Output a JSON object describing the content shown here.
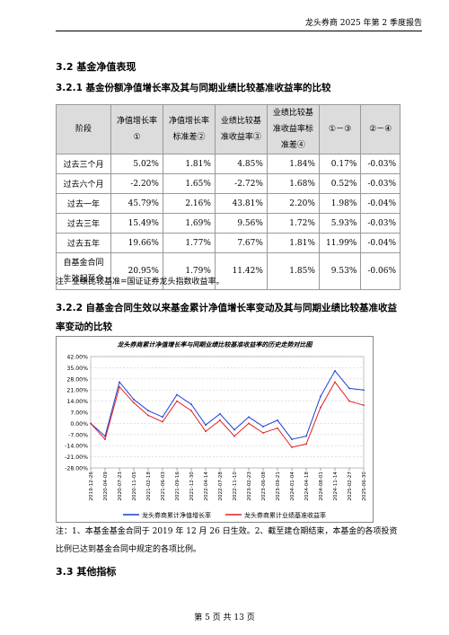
{
  "header": {
    "text": "龙头券商 2025 年第 2 季度报告"
  },
  "section_3_2": {
    "title": "3.2 基金净值表现"
  },
  "section_3_2_1": {
    "title": "3.2.1 基金份额净值增长率及其与同期业绩比较基准收益率的比较",
    "headers": [
      "阶段",
      "净值增长率\n①",
      "净值增长率\n标准差②",
      "业绩比较基\n准收益率③",
      "业绩比较基\n准收益率标\n准差④",
      "①－③",
      "②－④"
    ],
    "rows": [
      [
        "过去三个月",
        "5.02%",
        "1.81%",
        "4.85%",
        "1.84%",
        "0.17%",
        "-0.03%"
      ],
      [
        "过去六个月",
        "-2.20%",
        "1.65%",
        "-2.72%",
        "1.68%",
        "0.52%",
        "-0.03%"
      ],
      [
        "过去一年",
        "45.79%",
        "2.16%",
        "43.81%",
        "2.20%",
        "1.98%",
        "-0.04%"
      ],
      [
        "过去三年",
        "15.49%",
        "1.69%",
        "9.56%",
        "1.72%",
        "5.93%",
        "-0.03%"
      ],
      [
        "过去五年",
        "19.66%",
        "1.77%",
        "7.67%",
        "1.81%",
        "11.99%",
        "-0.04%"
      ],
      [
        "自基金合同\n生效起至今",
        "20.95%",
        "1.79%",
        "11.42%",
        "1.85%",
        "9.53%",
        "-0.06%"
      ]
    ],
    "note": "注：业绩比较基准=国证证券龙头指数收益率。"
  },
  "section_3_2_2": {
    "title": "3.2.2 自基金合同生效以来基金累计净值增长率变动及其与同期业绩比较基准收益率变动的比较"
  },
  "chart_data": {
    "type": "line",
    "title": "龙头券商累计净值增长率与同期业绩比较基准收益率的历史走势对比图",
    "ylim": [
      -28,
      42
    ],
    "yticks": [
      "42.00%",
      "35.00%",
      "28.00%",
      "21.00%",
      "14.00%",
      "7.00%",
      "0.00%",
      "-7.00%",
      "-14.00%",
      "-21.00%",
      "-28.00%"
    ],
    "x": [
      "2019-12-26",
      "2020-04-09",
      "2020-07-23",
      "2020-11-05",
      "2021-02-18",
      "2021-06-03",
      "2021-09-16",
      "2021-12-30",
      "2022-04-14",
      "2022-07-28",
      "2022-11-10",
      "2023-02-23",
      "2023-06-08",
      "2023-09-21",
      "2024-01-04",
      "2024-04-18",
      "2024-08-01",
      "2024-11-14",
      "2025-02-27",
      "2025-06-30"
    ],
    "series": [
      {
        "name": "龙头券商累计净值增长率",
        "color": "#1f3fd6",
        "values": [
          0,
          -8,
          26,
          15,
          8,
          4,
          18,
          12,
          -1,
          6,
          -4,
          4,
          -2,
          2,
          -10,
          -8,
          17,
          33,
          22,
          20.95
        ]
      },
      {
        "name": "龙头券商累计业绩基准收益率",
        "color": "#e02020",
        "values": [
          0,
          -10,
          23,
          13,
          5,
          1,
          14,
          8,
          -5,
          2,
          -8,
          0,
          -6,
          -3,
          -15,
          -13,
          10,
          26,
          14,
          11.42
        ]
      }
    ],
    "legend_position": "bottom"
  },
  "note2": "注：1、本基金基金合同于 2019 年 12 月 26 日生效。2、截至建仓期结束，本基金的各项投资比例已达到基金合同中规定的各项比例。",
  "section_3_3": {
    "title": "3.3 其他指标"
  },
  "footer": {
    "text": "第 5 页 共 13 页"
  }
}
